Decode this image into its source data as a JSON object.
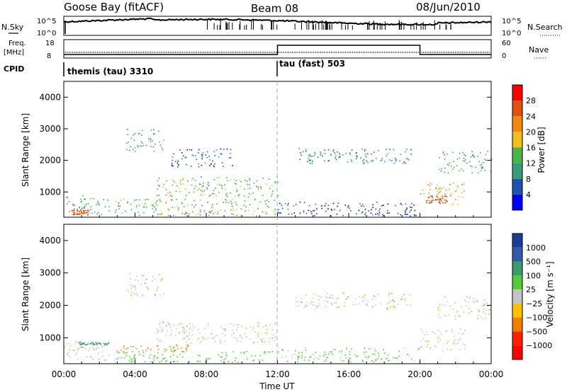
{
  "header": {
    "title": "Goose Bay (fitACF)",
    "beam": "Beam 08",
    "date": "08/Jun/2010"
  },
  "side_labels": {
    "nsky": "N.Sky",
    "nsearch": "N.Search",
    "freq": "Freq.",
    "freq_unit": "[MHz]",
    "nave": "Nave",
    "cpid": "CPID",
    "nsky_ticks": [
      "10^5",
      "10^0"
    ],
    "nsearch_ticks": [
      "10^5",
      "10^0"
    ],
    "freq_ticks": [
      "18",
      "8"
    ],
    "nave_ticks": [
      "60",
      "0"
    ]
  },
  "cpid_segments": [
    {
      "label": "themis (tau) 3310",
      "start_hour": 0
    },
    {
      "label": "tau (fast) 503",
      "start_hour": 12
    }
  ],
  "nave_step": {
    "start_hour": 12,
    "end_hour": 20
  },
  "colors": {
    "power": [
      "#0000ff",
      "#2050b0",
      "#3a9a7a",
      "#4ab44a",
      "#f0c020",
      "#f08a10",
      "#e05010",
      "#ff0000"
    ],
    "velocity": [
      "#1e3a9a",
      "#2e5aa8",
      "#3a9a6a",
      "#55c93a",
      "#c4c4c4",
      "#ffc000",
      "#f08000",
      "#ff2000",
      "#ff0000"
    ]
  },
  "chart_data": [
    {
      "type": "heatmap",
      "name": "power",
      "ylabel": "Slant Range [km]",
      "xlim": [
        0,
        24
      ],
      "ylim": [
        200,
        4500
      ],
      "y_ticks": [
        "1000",
        "2000",
        "3000",
        "4000"
      ],
      "x_ticks": [
        "00:00",
        "04:00",
        "08:00",
        "12:00",
        "16:00",
        "20:00",
        "00:00"
      ],
      "colorbar": {
        "label": "Power [dB]",
        "ticks": [
          "4",
          "8",
          "12",
          "16",
          "20",
          "24",
          "28"
        ]
      },
      "regions": [
        {
          "t0": 0.0,
          "t1": 2.6,
          "r0": 300,
          "r1": 900,
          "value": 12
        },
        {
          "t0": 0.4,
          "t1": 1.4,
          "r0": 280,
          "r1": 450,
          "value": 26
        },
        {
          "t0": 3.5,
          "t1": 5.6,
          "r0": 2300,
          "r1": 3000,
          "value": 12
        },
        {
          "t0": 2.8,
          "t1": 12.0,
          "r0": 250,
          "r1": 800,
          "value": 14
        },
        {
          "t0": 5.2,
          "t1": 12.0,
          "r0": 850,
          "r1": 1500,
          "value": 14
        },
        {
          "t0": 6.0,
          "t1": 9.5,
          "r0": 1800,
          "r1": 2400,
          "value": 6
        },
        {
          "t0": 12.0,
          "t1": 20.0,
          "r0": 250,
          "r1": 700,
          "value": 5
        },
        {
          "t0": 13.0,
          "t1": 19.5,
          "r0": 1900,
          "r1": 2400,
          "value": 8
        },
        {
          "t0": 20.0,
          "t1": 22.5,
          "r0": 600,
          "r1": 1300,
          "value": 18
        },
        {
          "t0": 20.3,
          "t1": 21.5,
          "r0": 650,
          "r1": 900,
          "value": 26
        },
        {
          "t0": 21.0,
          "t1": 24.0,
          "r0": 1600,
          "r1": 2300,
          "value": 12
        }
      ]
    },
    {
      "type": "heatmap",
      "name": "velocity",
      "ylabel": "Slant Range [km]",
      "xlabel": "Time UT",
      "xlim": [
        0,
        24
      ],
      "ylim": [
        200,
        4500
      ],
      "y_ticks": [
        "1000",
        "2000",
        "3000",
        "4000"
      ],
      "x_ticks": [
        "00:00",
        "04:00",
        "08:00",
        "12:00",
        "16:00",
        "20:00",
        "00:00"
      ],
      "colorbar": {
        "label": "Velocity [m s⁻¹]",
        "ticks": [
          "1000",
          "500",
          "100",
          "25",
          "−25",
          "−100",
          "−500",
          "−1000"
        ]
      },
      "regions": [
        {
          "t0": 0.0,
          "t1": 2.6,
          "r0": 300,
          "r1": 900,
          "value": 0
        },
        {
          "t0": 0.8,
          "t1": 2.6,
          "r0": 780,
          "r1": 880,
          "value": 150
        },
        {
          "t0": 3.5,
          "t1": 5.6,
          "r0": 2300,
          "r1": 3000,
          "value": 0
        },
        {
          "t0": 2.8,
          "t1": 7.0,
          "r0": 600,
          "r1": 800,
          "value": -200
        },
        {
          "t0": 2.8,
          "t1": 12.0,
          "r0": 250,
          "r1": 600,
          "value": 60
        },
        {
          "t0": 5.2,
          "t1": 12.0,
          "r0": 850,
          "r1": 1500,
          "value": 0
        },
        {
          "t0": 12.0,
          "t1": 20.0,
          "r0": 250,
          "r1": 700,
          "value": 40
        },
        {
          "t0": 13.0,
          "t1": 19.5,
          "r0": 1900,
          "r1": 2400,
          "value": 0
        },
        {
          "t0": 20.0,
          "t1": 22.5,
          "r0": 600,
          "r1": 1300,
          "value": 0
        },
        {
          "t0": 21.0,
          "t1": 24.0,
          "r0": 1600,
          "r1": 2300,
          "value": 0
        }
      ]
    }
  ]
}
